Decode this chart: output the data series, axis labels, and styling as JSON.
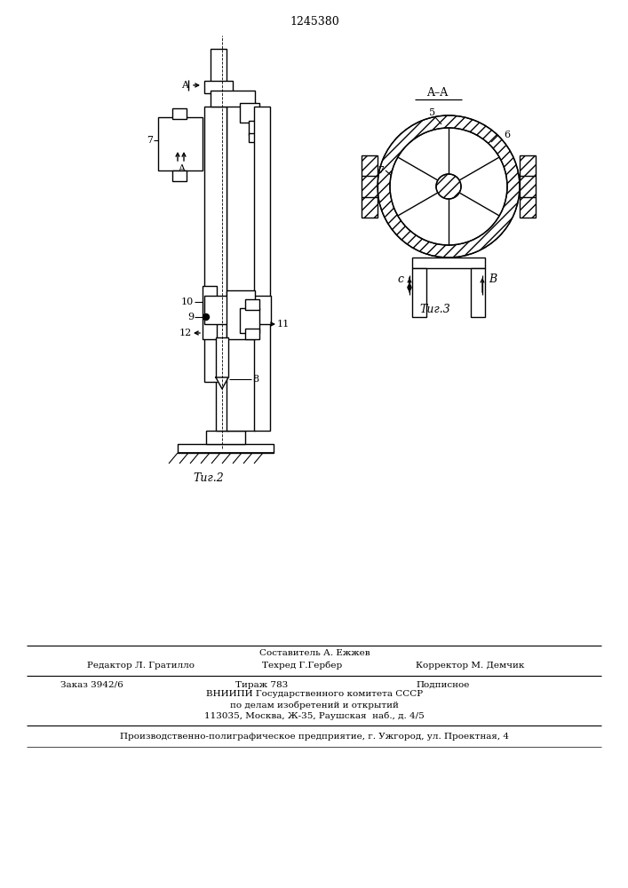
{
  "patent_number": "1245380",
  "fig2_caption": "Τиг.2",
  "fig3_caption": "Τиг.3",
  "section_label": "A–A",
  "bg_color": "#ffffff",
  "line_color": "#000000",
  "footer_sestavitel": "Составитель А. Ежжев",
  "footer_redaktor": "Редактор Л. Гратилло",
  "footer_tehred": "Техред Г.Гербер",
  "footer_korrektor": "Корректор М. Демчик",
  "footer_order": "Заказ 3942/6",
  "footer_tirazh": "Тираж 783",
  "footer_podpisnoe": "Подписное",
  "footer_vnipi": "ВНИИПИ Государственного комитета СССР",
  "footer_po_delam": "по делам изобретений и открытий",
  "footer_address": "113035, Москва, Ж-35, Раушская  наб., д. 4/5",
  "footer_proizv": "Производственно-полиграфическое предприятие, г. Ужгород, ул. Проектная, 4"
}
